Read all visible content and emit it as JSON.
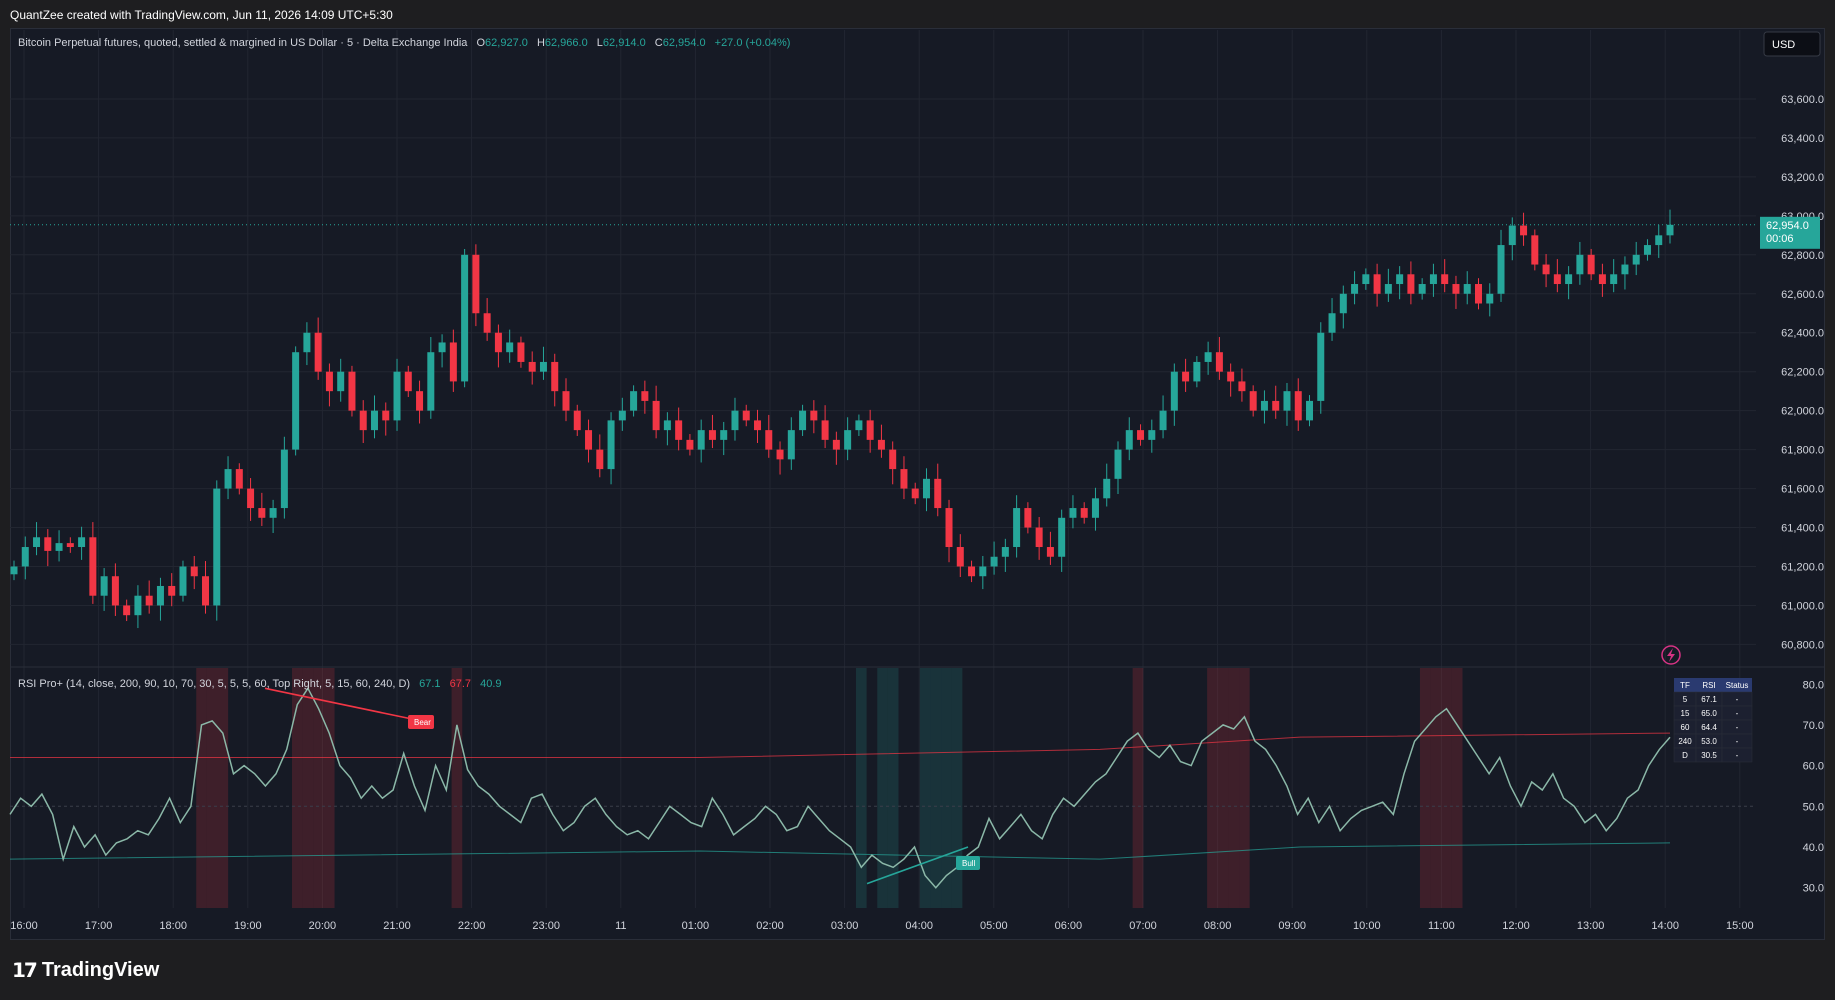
{
  "caption": "QuantZee created with TradingView.com, Jun 11, 2026 14:09 UTC+5:30",
  "brand": "TradingView",
  "currency": "USD",
  "legend": {
    "symbol": "Bitcoin Perpetual futures, quoted, settled & margined in US Dollar · 5 · Delta Exchange India",
    "o_label": "O",
    "o": "62,927.0",
    "h_label": "H",
    "h": "62,966.0",
    "l_label": "L",
    "l": "62,914.0",
    "c_label": "C",
    "c": "62,954.0",
    "change": "+27.0 (+0.04%)"
  },
  "last_price": {
    "value": "62,954.0",
    "countdown": "00:06"
  },
  "rsi_legend": {
    "name": "RSI Pro+ (14, close, 200, 90, 10, 70, 30, 5, 5, 5, 60, Top Right, 5, 15, 60, 240, D)",
    "v1": "67.1",
    "v2": "67.7",
    "v3": "40.9"
  },
  "rsi_table": {
    "headers": [
      "TF",
      "RSI",
      "Status"
    ],
    "rows": [
      [
        "5",
        "67.1",
        "-"
      ],
      [
        "15",
        "65.0",
        "-"
      ],
      [
        "60",
        "64.4",
        "-"
      ],
      [
        "240",
        "53.0",
        "-"
      ],
      [
        "D",
        "30.5",
        "-"
      ]
    ]
  },
  "labels": {
    "bear": "Bear",
    "bull": "Bull"
  },
  "colors": {
    "up": "#26a69a",
    "down": "#f23645",
    "bg": "#161a25"
  },
  "chart_data": [
    {
      "type": "candlestick",
      "x_ticks": [
        "16:00",
        "17:00",
        "18:00",
        "19:00",
        "20:00",
        "21:00",
        "22:00",
        "23:00",
        "11",
        "01:00",
        "02:00",
        "03:00",
        "04:00",
        "05:00",
        "06:00",
        "07:00",
        "08:00",
        "09:00",
        "10:00",
        "11:00",
        "12:00",
        "13:00",
        "14:00",
        "15:00"
      ],
      "y_ticks": [
        "60,800.0",
        "61,000.0",
        "61,200.0",
        "61,400.0",
        "61,600.0",
        "61,800.0",
        "62,000.0",
        "62,200.0",
        "62,400.0",
        "62,600.0",
        "62,800.0",
        "63,000.0",
        "63,200.0",
        "63,400.0",
        "63,600.0"
      ],
      "ylim": [
        60720,
        63800
      ],
      "close_path": [
        61200,
        61300,
        61350,
        61280,
        61320,
        61300,
        61350,
        61050,
        61150,
        61000,
        60950,
        61050,
        61000,
        61100,
        61050,
        61200,
        61150,
        61000,
        61600,
        61700,
        61600,
        61500,
        61450,
        61500,
        61800,
        62300,
        62400,
        62200,
        62100,
        62200,
        62000,
        61900,
        62000,
        61950,
        62200,
        62100,
        62000,
        62300,
        62350,
        62150,
        62800,
        62500,
        62400,
        62300,
        62350,
        62250,
        62200,
        62250,
        62100,
        62000,
        61900,
        61800,
        61700,
        61950,
        62000,
        62100,
        62050,
        61900,
        61950,
        61850,
        61800,
        61900,
        61850,
        61900,
        62000,
        61950,
        61900,
        61800,
        61750,
        61900,
        62000,
        61950,
        61850,
        61800,
        61900,
        61950,
        61850,
        61800,
        61700,
        61600,
        61550,
        61650,
        61500,
        61300,
        61200,
        61150,
        61200,
        61250,
        61300,
        61500,
        61400,
        61300,
        61250,
        61450,
        61500,
        61450,
        61550,
        61650,
        61800,
        61900,
        61850,
        61900,
        62000,
        62200,
        62150,
        62250,
        62300,
        62200,
        62150,
        62100,
        62000,
        62050,
        62000,
        62100,
        61950,
        62050,
        62400,
        62500,
        62600,
        62650,
        62700,
        62600,
        62650,
        62700,
        62600,
        62650,
        62700,
        62650,
        62600,
        62650,
        62550,
        62600,
        62850,
        62950,
        62900,
        62750,
        62700,
        62650,
        62700,
        62800,
        62700,
        62650,
        62700,
        62750,
        62800,
        62850,
        62900,
        62954
      ],
      "last": 62954
    },
    {
      "type": "line",
      "name": "RSI Pro+",
      "y_ticks": [
        "30.0",
        "40.0",
        "50.0",
        "60.0",
        "70.0",
        "80.0"
      ],
      "ylim": [
        25,
        84
      ],
      "rsi": [
        48,
        52,
        50,
        53,
        48,
        37,
        45,
        40,
        43,
        38,
        41,
        42,
        44,
        43,
        47,
        52,
        46,
        50,
        70,
        71,
        68,
        58,
        60,
        58,
        55,
        58,
        64,
        75,
        79,
        74,
        68,
        60,
        57,
        52,
        55,
        52,
        54,
        63,
        55,
        49,
        60,
        54,
        70,
        59,
        55,
        53,
        50,
        48,
        46,
        52,
        53,
        48,
        44,
        46,
        50,
        52,
        48,
        45,
        43,
        44,
        42,
        46,
        50,
        48,
        46,
        45,
        52,
        48,
        43,
        45,
        47,
        50,
        48,
        44,
        45,
        50,
        47,
        44,
        42,
        40,
        35,
        38,
        36,
        35,
        37,
        40,
        33,
        30,
        33,
        35,
        38,
        40,
        47,
        42,
        45,
        48,
        44,
        42,
        48,
        52,
        50,
        53,
        56,
        58,
        62,
        66,
        68,
        64,
        62,
        65,
        61,
        60,
        66,
        68,
        70,
        69,
        72,
        66,
        64,
        60,
        55,
        48,
        52,
        46,
        50,
        44,
        47,
        49,
        50,
        51,
        48,
        58,
        66,
        69,
        72,
        74,
        70,
        66,
        62,
        58,
        62,
        55,
        50,
        56,
        54,
        58,
        52,
        50,
        46,
        48,
        44,
        47,
        52,
        54,
        60,
        64,
        67
      ]
    }
  ]
}
